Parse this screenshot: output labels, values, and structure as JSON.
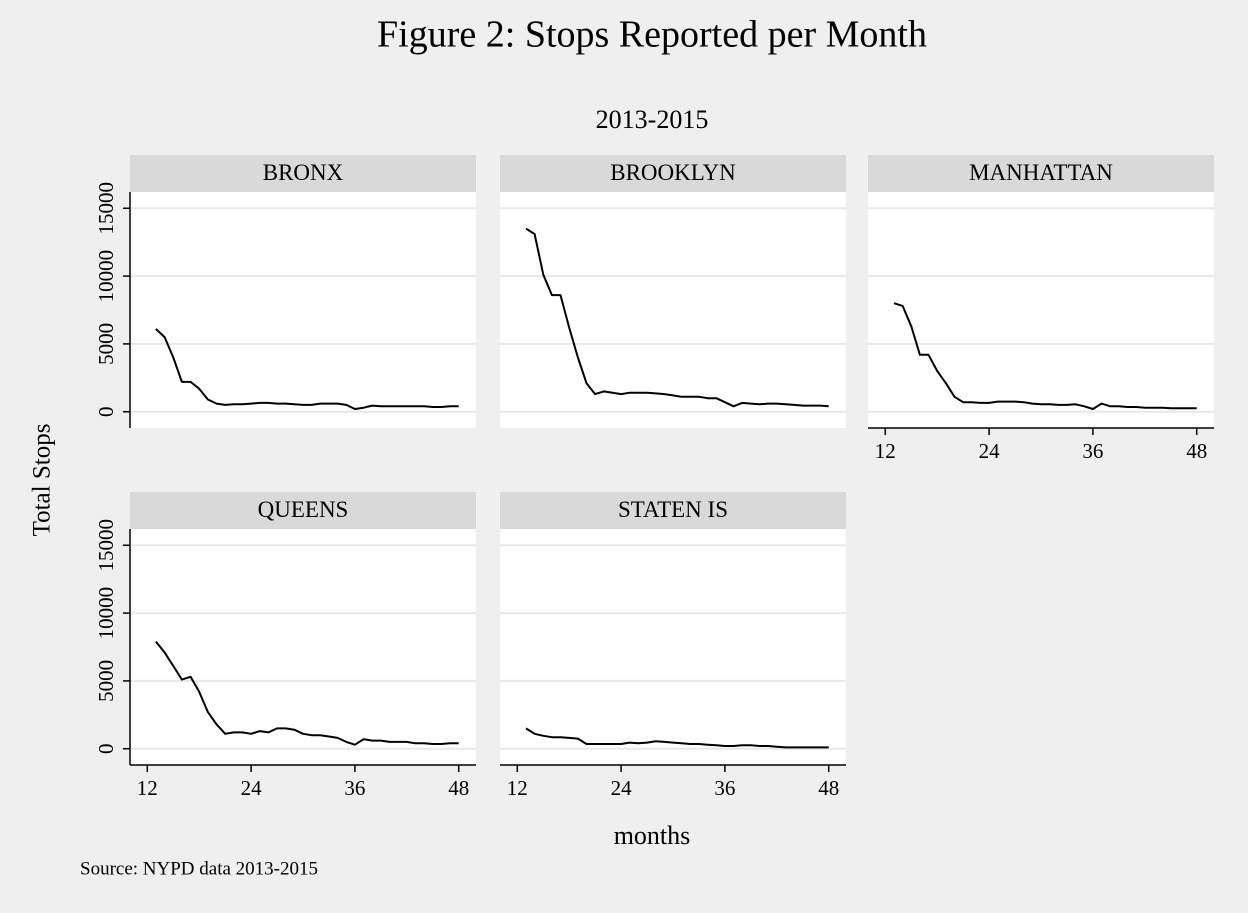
{
  "title": "Figure 2: Stops Reported per Month",
  "subtitle": "2013-2015",
  "xlabel": "months",
  "ylabel": "Total Stops",
  "note": "Source: NYPD data 2013-2015",
  "chart_data": [
    {
      "type": "line",
      "title": "BRONX",
      "color": "#000000",
      "x": [
        13,
        14,
        15,
        16,
        17,
        18,
        19,
        20,
        21,
        22,
        23,
        24,
        25,
        26,
        27,
        28,
        29,
        30,
        31,
        32,
        33,
        34,
        35,
        36,
        37,
        38,
        39,
        40,
        41,
        42,
        43,
        44,
        45,
        46,
        47,
        48
      ],
      "values": [
        6100,
        5500,
        4000,
        2200,
        2200,
        1700,
        900,
        600,
        500,
        550,
        550,
        600,
        650,
        650,
        600,
        600,
        550,
        500,
        500,
        600,
        600,
        600,
        500,
        200,
        300,
        450,
        400,
        400,
        400,
        400,
        400,
        400,
        350,
        350,
        400,
        400
      ],
      "xlim": [
        10,
        50
      ],
      "ylim": [
        -1200,
        16200
      ],
      "yticks": [
        0,
        5000,
        10000,
        15000
      ],
      "grid": true
    },
    {
      "type": "line",
      "title": "BROOKLYN",
      "color": "#000000",
      "x": [
        13,
        14,
        15,
        16,
        17,
        18,
        19,
        20,
        21,
        22,
        23,
        24,
        25,
        26,
        27,
        28,
        29,
        30,
        31,
        32,
        33,
        34,
        35,
        36,
        37,
        38,
        39,
        40,
        41,
        42,
        43,
        44,
        45,
        46,
        47,
        48
      ],
      "values": [
        13500,
        13100,
        10100,
        8600,
        8600,
        6200,
        4000,
        2100,
        1300,
        1500,
        1400,
        1300,
        1400,
        1400,
        1400,
        1350,
        1300,
        1200,
        1100,
        1100,
        1100,
        1000,
        1000,
        700,
        400,
        650,
        600,
        550,
        600,
        600,
        550,
        500,
        450,
        450,
        450,
        400
      ],
      "xlim": [
        10,
        50
      ],
      "ylim": [
        -1200,
        16200
      ],
      "yticks": [
        0,
        5000,
        10000,
        15000
      ],
      "grid": true
    },
    {
      "type": "line",
      "title": "MANHATTAN",
      "color": "#000000",
      "x": [
        13,
        14,
        15,
        16,
        17,
        18,
        19,
        20,
        21,
        22,
        23,
        24,
        25,
        26,
        27,
        28,
        29,
        30,
        31,
        32,
        33,
        34,
        35,
        36,
        37,
        38,
        39,
        40,
        41,
        42,
        43,
        44,
        45,
        46,
        47,
        48
      ],
      "values": [
        8000,
        7800,
        6300,
        4200,
        4200,
        3000,
        2100,
        1100,
        700,
        700,
        650,
        650,
        750,
        750,
        750,
        700,
        600,
        550,
        550,
        500,
        500,
        550,
        400,
        200,
        600,
        400,
        400,
        350,
        350,
        300,
        300,
        300,
        250,
        250,
        250,
        250
      ],
      "xlim": [
        10,
        50
      ],
      "xticks": [
        12,
        24,
        36,
        48
      ],
      "ylim": [
        -1200,
        16200
      ],
      "yticks": [
        0,
        5000,
        10000,
        15000
      ],
      "grid": true
    },
    {
      "type": "line",
      "title": "QUEENS",
      "color": "#000000",
      "x": [
        13,
        14,
        15,
        16,
        17,
        18,
        19,
        20,
        21,
        22,
        23,
        24,
        25,
        26,
        27,
        28,
        29,
        30,
        31,
        32,
        33,
        34,
        35,
        36,
        37,
        38,
        39,
        40,
        41,
        42,
        43,
        44,
        45,
        46,
        47,
        48
      ],
      "values": [
        7900,
        7100,
        6100,
        5100,
        5300,
        4200,
        2700,
        1800,
        1100,
        1200,
        1200,
        1100,
        1300,
        1200,
        1500,
        1500,
        1400,
        1100,
        1000,
        1000,
        900,
        800,
        500,
        300,
        700,
        600,
        600,
        500,
        500,
        500,
        400,
        400,
        350,
        350,
        400,
        400
      ],
      "xlim": [
        10,
        50
      ],
      "xticks": [
        12,
        24,
        36,
        48
      ],
      "ylim": [
        -1200,
        16200
      ],
      "yticks": [
        0,
        5000,
        10000,
        15000
      ],
      "grid": true
    },
    {
      "type": "line",
      "title": "STATEN IS",
      "color": "#000000",
      "x": [
        13,
        14,
        15,
        16,
        17,
        18,
        19,
        20,
        21,
        22,
        23,
        24,
        25,
        26,
        27,
        28,
        29,
        30,
        31,
        32,
        33,
        34,
        35,
        36,
        37,
        38,
        39,
        40,
        41,
        42,
        43,
        44,
        45,
        46,
        47,
        48
      ],
      "values": [
        1500,
        1100,
        950,
        850,
        850,
        800,
        750,
        350,
        350,
        350,
        350,
        350,
        450,
        400,
        450,
        550,
        500,
        450,
        400,
        350,
        350,
        300,
        250,
        200,
        200,
        250,
        250,
        200,
        200,
        150,
        100,
        100,
        100,
        100,
        100,
        100
      ],
      "xlim": [
        10,
        50
      ],
      "xticks": [
        12,
        24,
        36,
        48
      ],
      "ylim": [
        -1200,
        16200
      ],
      "yticks": [
        0,
        5000,
        10000,
        15000
      ],
      "grid": true
    }
  ]
}
